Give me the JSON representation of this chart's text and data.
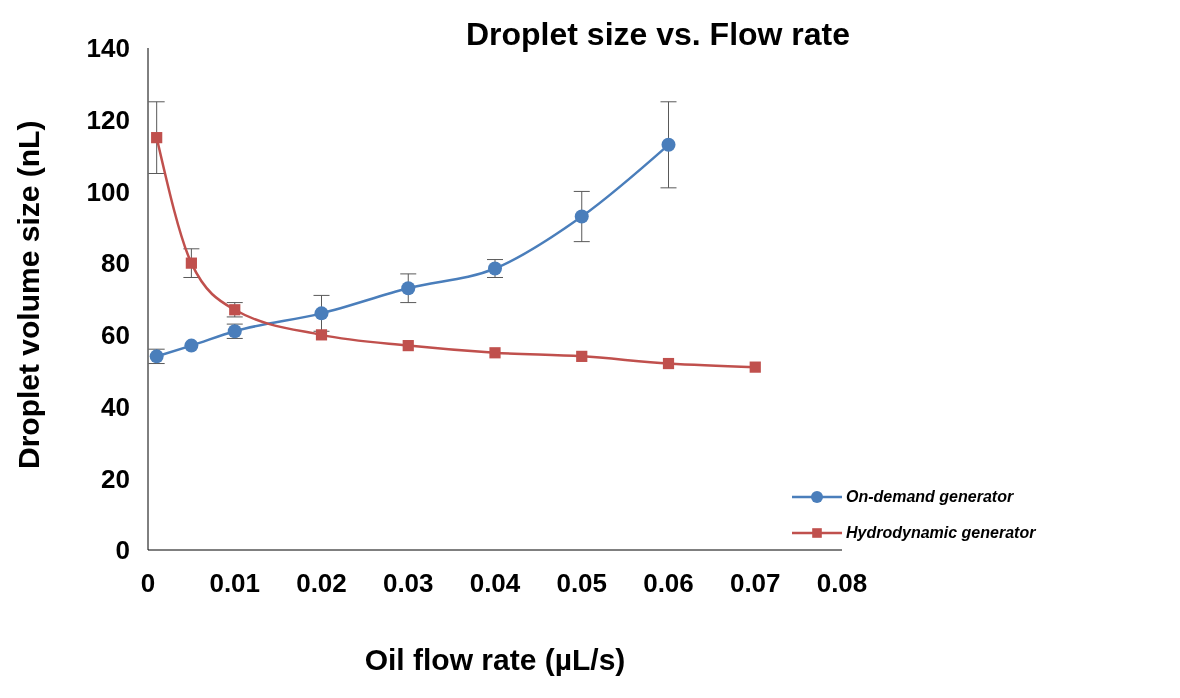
{
  "chart_data": {
    "type": "line",
    "title": "Droplet size vs. Flow rate",
    "xlabel": "Oil flow rate (µL/s)",
    "ylabel": "Droplet volume size (nL)",
    "xlim": [
      0,
      0.08
    ],
    "xticks": [
      0,
      0.01,
      0.02,
      0.03,
      0.04,
      0.05,
      0.06,
      0.07,
      0.08
    ],
    "ylim": [
      0,
      140
    ],
    "yticks": [
      0,
      20,
      40,
      60,
      80,
      100,
      120,
      140
    ],
    "grid": false,
    "legend": "bottom right",
    "series": [
      {
        "name": "On-demand generator",
        "color": "#4a7ebb",
        "marker": "circle",
        "x": [
          0.001,
          0.005,
          0.01,
          0.02,
          0.03,
          0.04,
          0.05,
          0.06
        ],
        "values": [
          54,
          57,
          61,
          66,
          73,
          78.5,
          93,
          113
        ],
        "errors": [
          2,
          null,
          2,
          5,
          4,
          2.5,
          7,
          12
        ]
      },
      {
        "name": "Hydrodynamic generator",
        "color": "#c0504d",
        "marker": "square",
        "x": [
          0.001,
          0.005,
          0.01,
          0.02,
          0.03,
          0.04,
          0.05,
          0.06,
          0.07
        ],
        "values": [
          115,
          80,
          67,
          60,
          57,
          55,
          54,
          52,
          51
        ],
        "errors": [
          10,
          4,
          2,
          null,
          null,
          null,
          null,
          null,
          null
        ]
      }
    ]
  }
}
